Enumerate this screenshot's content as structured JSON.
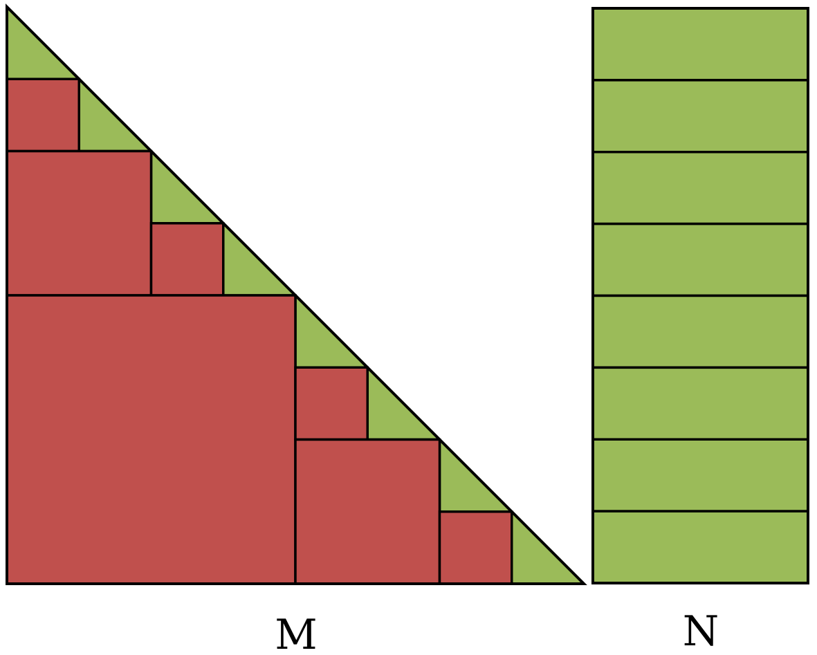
{
  "diagram": {
    "label_m": "M",
    "label_n": "N",
    "colors": {
      "red": "#C0504D",
      "green": "#9BBB59",
      "stroke": "#000000"
    },
    "triangle_matrix": {
      "grid_size": 8,
      "red_squares": [
        {
          "col": 0,
          "row": 1,
          "size": 1
        },
        {
          "col": 0,
          "row": 2,
          "size": 2
        },
        {
          "col": 2,
          "row": 3,
          "size": 1
        },
        {
          "col": 0,
          "row": 4,
          "size": 4
        },
        {
          "col": 4,
          "row": 5,
          "size": 1
        },
        {
          "col": 4,
          "row": 6,
          "size": 2
        },
        {
          "col": 6,
          "row": 7,
          "size": 1
        }
      ],
      "green_triangles": 8
    },
    "strip_matrix": {
      "rows": 8
    }
  }
}
